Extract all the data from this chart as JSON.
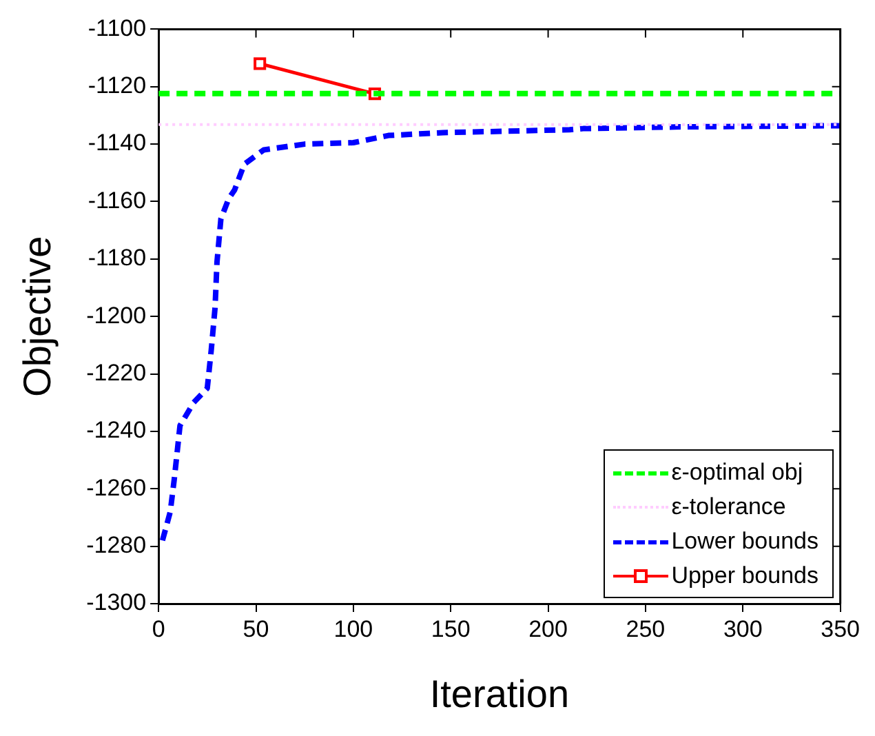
{
  "chart_data": {
    "type": "line",
    "xlabel": "Iteration",
    "ylabel": "Objective",
    "xlim": [
      0,
      350
    ],
    "xticks": [
      0,
      50,
      100,
      150,
      200,
      250,
      300,
      350
    ],
    "ylim": [
      -1300,
      -1100
    ],
    "yticks": [
      -1300,
      -1280,
      -1260,
      -1240,
      -1220,
      -1200,
      -1180,
      -1160,
      -1140,
      -1120,
      -1100
    ],
    "grid": false,
    "legend": "bottom right",
    "series": [
      {
        "name": "ε-optimal obj",
        "color": "#00ff00",
        "line_style": "dashed",
        "marker": "none",
        "x": [
          0,
          350
        ],
        "values": [
          -1122.4,
          -1122.4
        ]
      },
      {
        "name": "ε-tolerance",
        "color": "#ffccff",
        "line_style": "dotted",
        "marker": "none",
        "x": [
          0,
          350
        ],
        "values": [
          -1133.2,
          -1133.2
        ]
      },
      {
        "name": "Lower bounds",
        "color": "#0000ff",
        "line_style": "dashed",
        "marker": "none",
        "x": [
          2,
          6,
          8,
          11,
          18,
          25,
          27,
          29,
          30,
          32,
          36,
          39,
          44,
          54,
          75,
          100,
          118,
          146,
          211,
          218,
          268,
          350
        ],
        "values": [
          -1278,
          -1268,
          -1257,
          -1238,
          -1230,
          -1225,
          -1212,
          -1197,
          -1181,
          -1166,
          -1159,
          -1156,
          -1147,
          -1142,
          -1140,
          -1139.5,
          -1137,
          -1136,
          -1135,
          -1134.6,
          -1134,
          -1133.6
        ]
      },
      {
        "name": "Upper bounds",
        "color": "#ff0000",
        "line_style": "solid",
        "marker": "square",
        "x": [
          52,
          111
        ],
        "values": [
          -1112,
          -1122.5
        ]
      }
    ]
  }
}
